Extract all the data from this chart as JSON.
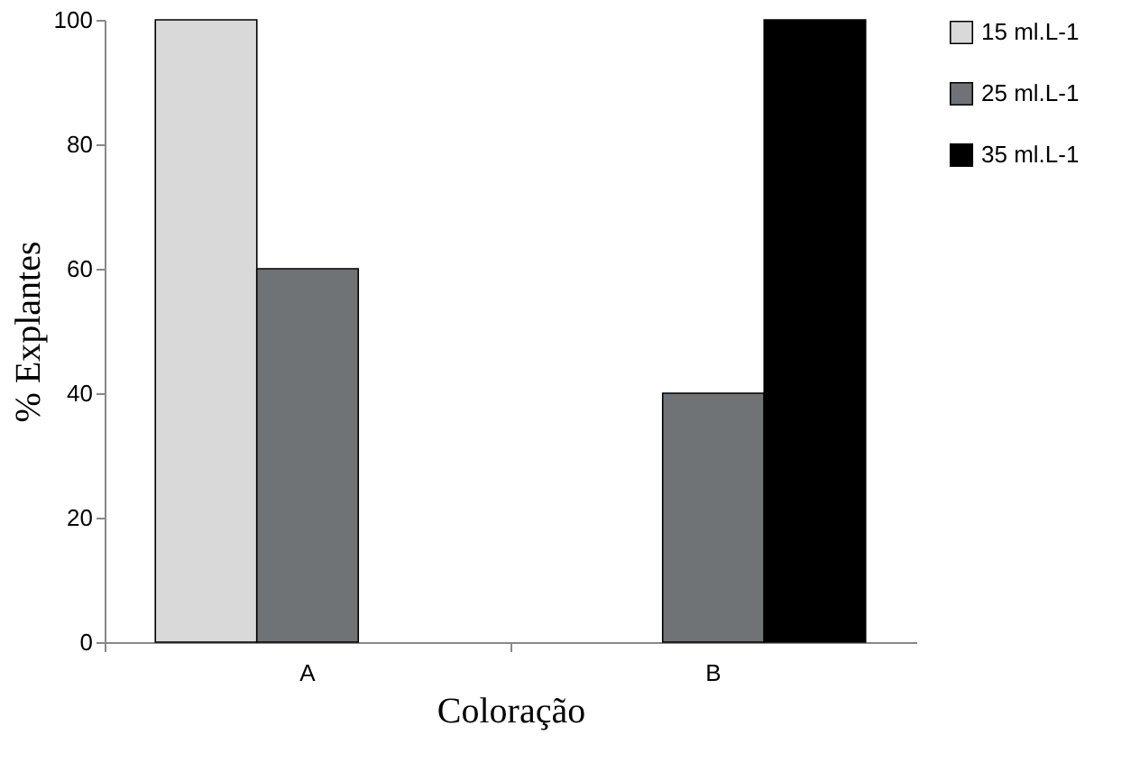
{
  "chart_data": {
    "type": "bar",
    "xlabel": "Coloração",
    "ylabel": "% Explantes",
    "categories": [
      "A",
      "B"
    ],
    "series": [
      {
        "name": "15 ml.L-1",
        "color": "#d9d9d9",
        "values": [
          100,
          null
        ]
      },
      {
        "name": "25 ml.L-1",
        "color": "#707376",
        "values": [
          60,
          40
        ]
      },
      {
        "name": "35 ml.L-1",
        "color": "#000000",
        "values": [
          null,
          100
        ]
      }
    ],
    "ylim": [
      0,
      100
    ],
    "yticks": [
      0,
      20,
      40,
      60,
      80,
      100
    ],
    "grid": false,
    "legend": "right"
  }
}
